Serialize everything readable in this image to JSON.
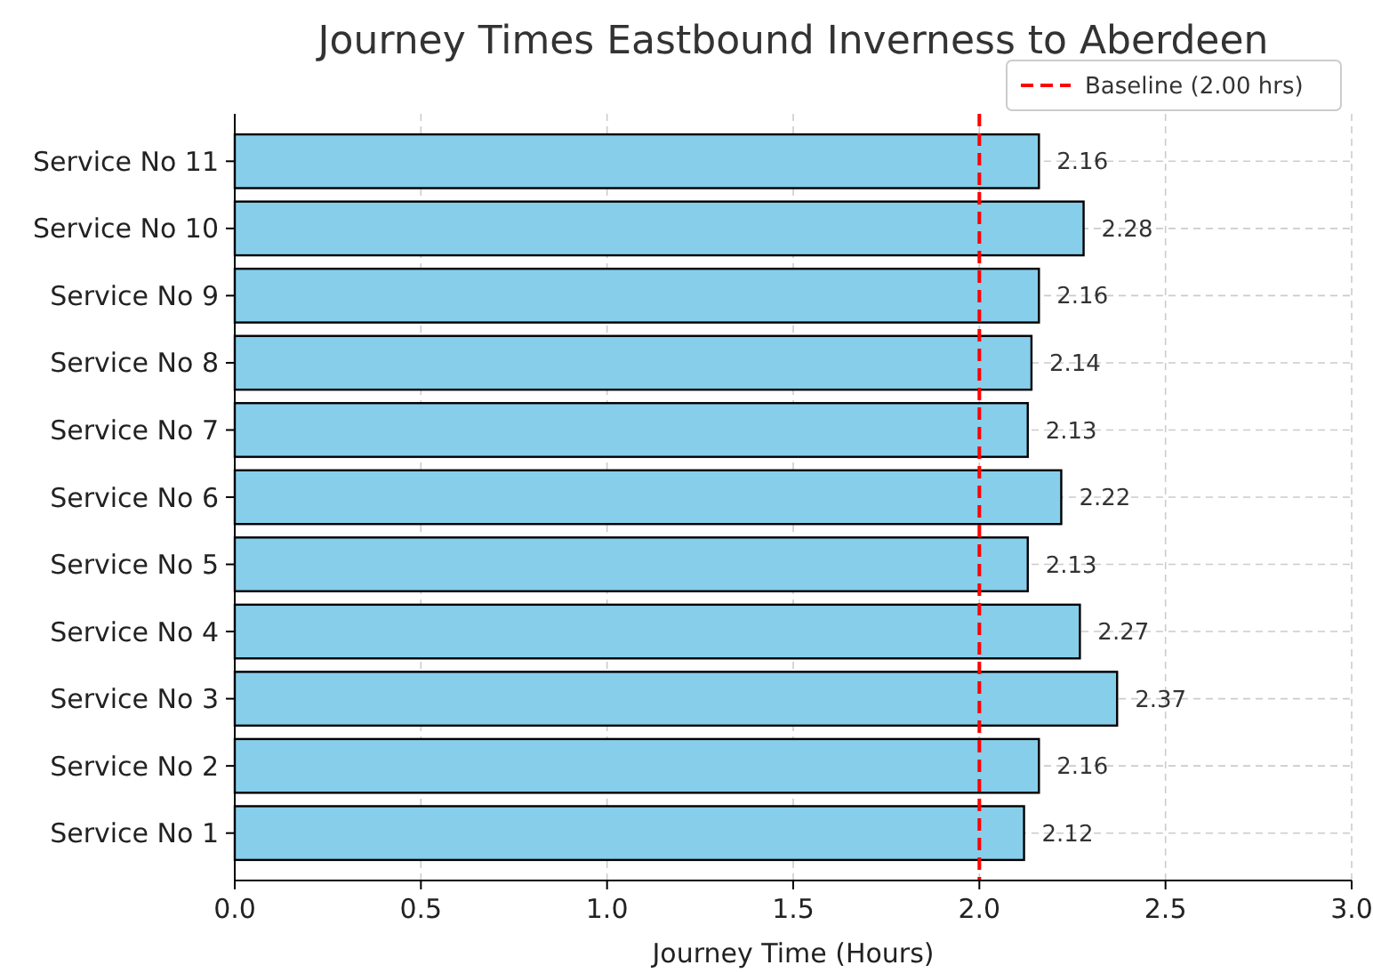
{
  "chart_data": {
    "type": "bar",
    "orientation": "horizontal",
    "title": "Journey Times Eastbound Inverness to Aberdeen",
    "xlabel": "Journey Time (Hours)",
    "categories": [
      "Service No 11",
      "Service No 10",
      "Service No 9",
      "Service No 8",
      "Service No 7",
      "Service No 6",
      "Service No 5",
      "Service No 4",
      "Service No 3",
      "Service No 2",
      "Service No 1"
    ],
    "values": [
      2.16,
      2.28,
      2.16,
      2.14,
      2.13,
      2.22,
      2.13,
      2.27,
      2.37,
      2.16,
      2.12
    ],
    "color": "#87ceeb",
    "data_labels": true,
    "xlim": [
      0,
      3
    ],
    "xticks": [
      {
        "value": 0,
        "label": "0.0"
      },
      {
        "value": 0.5,
        "label": "0.5"
      },
      {
        "value": 1,
        "label": "1.0"
      },
      {
        "value": 1.5,
        "label": "1.5"
      },
      {
        "value": 2,
        "label": "2.0"
      },
      {
        "value": 2.5,
        "label": "2.5"
      },
      {
        "value": 3,
        "label": "3.0"
      }
    ],
    "ref_lines": [
      {
        "axis": "x",
        "value": 2,
        "label": "Baseline (2.00 hrs)",
        "color": "#ff0000",
        "line_style": "dashed"
      }
    ],
    "grid": true,
    "legend": "top right"
  }
}
